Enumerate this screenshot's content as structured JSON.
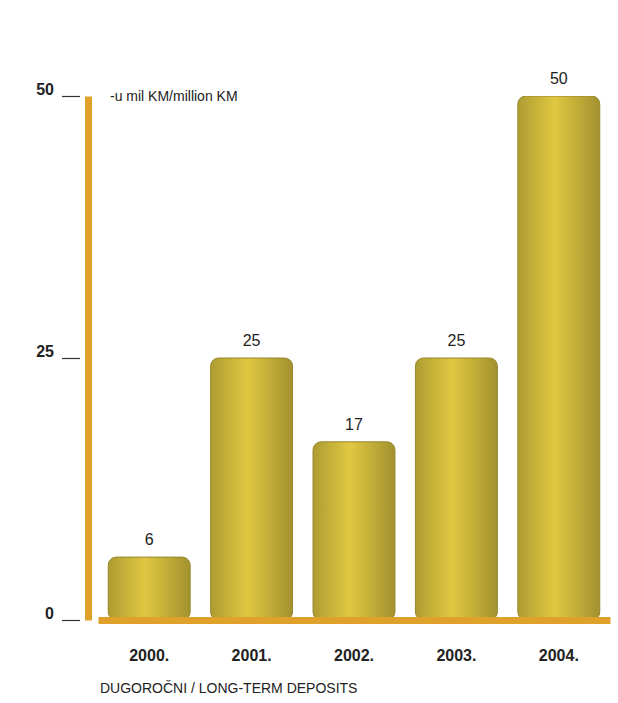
{
  "chart_data": {
    "type": "bar",
    "annotation": "-u mil KM/million KM",
    "x_label": "DUGOROČNI / LONG-TERM DEPOSITS",
    "categories": [
      "2000.",
      "2001.",
      "2002.",
      "2003.",
      "2004."
    ],
    "values": [
      6,
      25,
      17,
      25,
      50
    ],
    "color": "#c9b43a",
    "ylim": [
      0,
      50
    ],
    "yticks": [
      0,
      25,
      50
    ],
    "data_labels": true,
    "grid": false
  }
}
